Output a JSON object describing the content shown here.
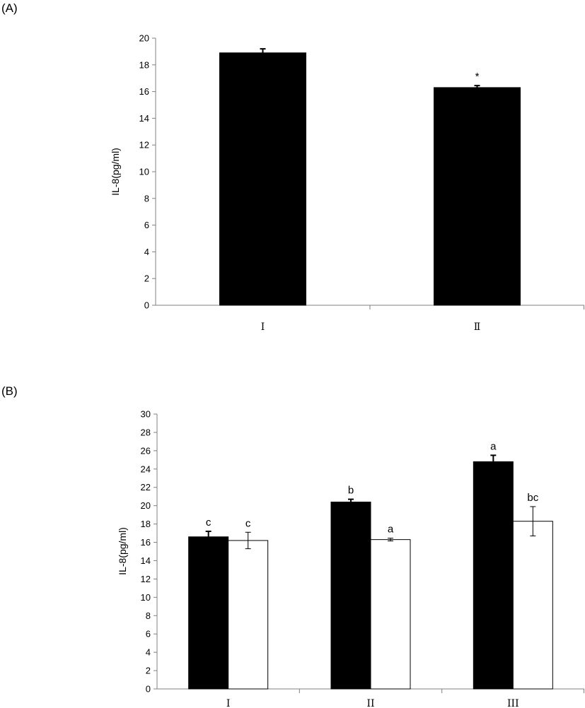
{
  "chart_data": [
    {
      "panel": "(A)",
      "type": "bar",
      "ylabel": "IL-8(pg/ml)",
      "xlabel": "",
      "ylim": [
        0,
        20
      ],
      "ytick_step": 2,
      "categories": [
        "Ⅰ",
        "Ⅱ"
      ],
      "series": [
        {
          "color": "#000000",
          "values": [
            18.9,
            16.3
          ],
          "errors": [
            0.3,
            0.15
          ],
          "annotations": [
            "",
            "*"
          ]
        }
      ]
    },
    {
      "panel": "(B)",
      "type": "bar",
      "ylabel": "IL-8(pg/ml)",
      "xlabel": "",
      "ylim": [
        0,
        30
      ],
      "ytick_step": 2,
      "categories": [
        "I",
        "II",
        "III"
      ],
      "series": [
        {
          "color": "#000000",
          "values": [
            16.6,
            20.4,
            24.8
          ],
          "errors": [
            0.6,
            0.3,
            0.7
          ],
          "annotations": [
            "c",
            "b",
            "a"
          ]
        },
        {
          "color": "#ffffff",
          "values": [
            16.2,
            16.3,
            18.3
          ],
          "errors": [
            0.9,
            0.15,
            1.6
          ],
          "annotations": [
            "c",
            "a",
            "bc"
          ]
        }
      ]
    }
  ]
}
